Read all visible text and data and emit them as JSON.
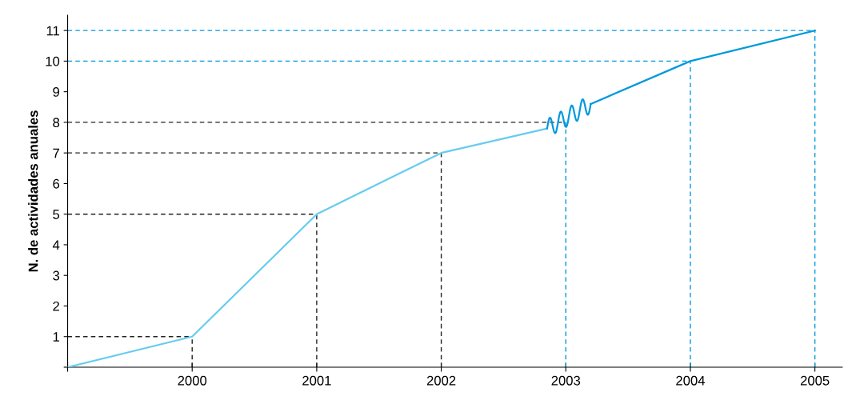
{
  "chart_data": {
    "type": "line",
    "ylabel": "N. de actividades anuales",
    "series": [
      {
        "color": "#66ccee",
        "x": [
          1999,
          2000,
          2001,
          2002,
          2002.85
        ],
        "values": [
          0,
          1,
          5,
          7,
          7.8
        ]
      },
      {
        "color": "#0099dd",
        "x": [
          2003.2,
          2004,
          2005
        ],
        "values": [
          8.6,
          10,
          11
        ]
      }
    ],
    "xlim": [
      1999,
      2005.22
    ],
    "ylim": [
      0,
      11.5
    ],
    "xticks": [
      {
        "value": 1999,
        "label": null
      },
      2000,
      2001,
      2002,
      2003,
      2004,
      2005
    ],
    "yticks": [
      {
        "value": 0,
        "label": null
      },
      1,
      2,
      3,
      4,
      5,
      6,
      7,
      8,
      9,
      10,
      11
    ],
    "ref_lines": [
      {
        "axis": "y",
        "value": 1,
        "color": "#222222",
        "line_style": "dashed"
      },
      {
        "axis": "x",
        "value": 2000,
        "color": "#222222",
        "line_style": "dashed"
      },
      {
        "axis": "y",
        "value": 5,
        "color": "#222222",
        "line_style": "dashed"
      },
      {
        "axis": "x",
        "value": 2001,
        "color": "#222222",
        "line_style": "dashed"
      },
      {
        "axis": "y",
        "value": 7,
        "color": "#222222",
        "line_style": "dashed"
      },
      {
        "axis": "x",
        "value": 2002,
        "color": "#222222",
        "line_style": "dashed"
      },
      {
        "axis": "y",
        "value": 8,
        "color": "#222222",
        "line_style": "dashed"
      },
      {
        "axis": "x",
        "value": 2003,
        "color": "#0099dd",
        "line_style": "dashed"
      },
      {
        "axis": "y",
        "value": 10,
        "color": "#0099dd",
        "line_style": "dashed"
      },
      {
        "axis": "x",
        "value": 2004,
        "color": "#0099dd",
        "line_style": "dashed"
      },
      {
        "axis": "y",
        "value": 11,
        "color": "#0099dd",
        "line_style": "dashed"
      },
      {
        "axis": "x",
        "value": 2005,
        "color": "#0099dd",
        "line_style": "dashed"
      }
    ],
    "grid": false,
    "marker": "none",
    "line_style": "solid"
  }
}
